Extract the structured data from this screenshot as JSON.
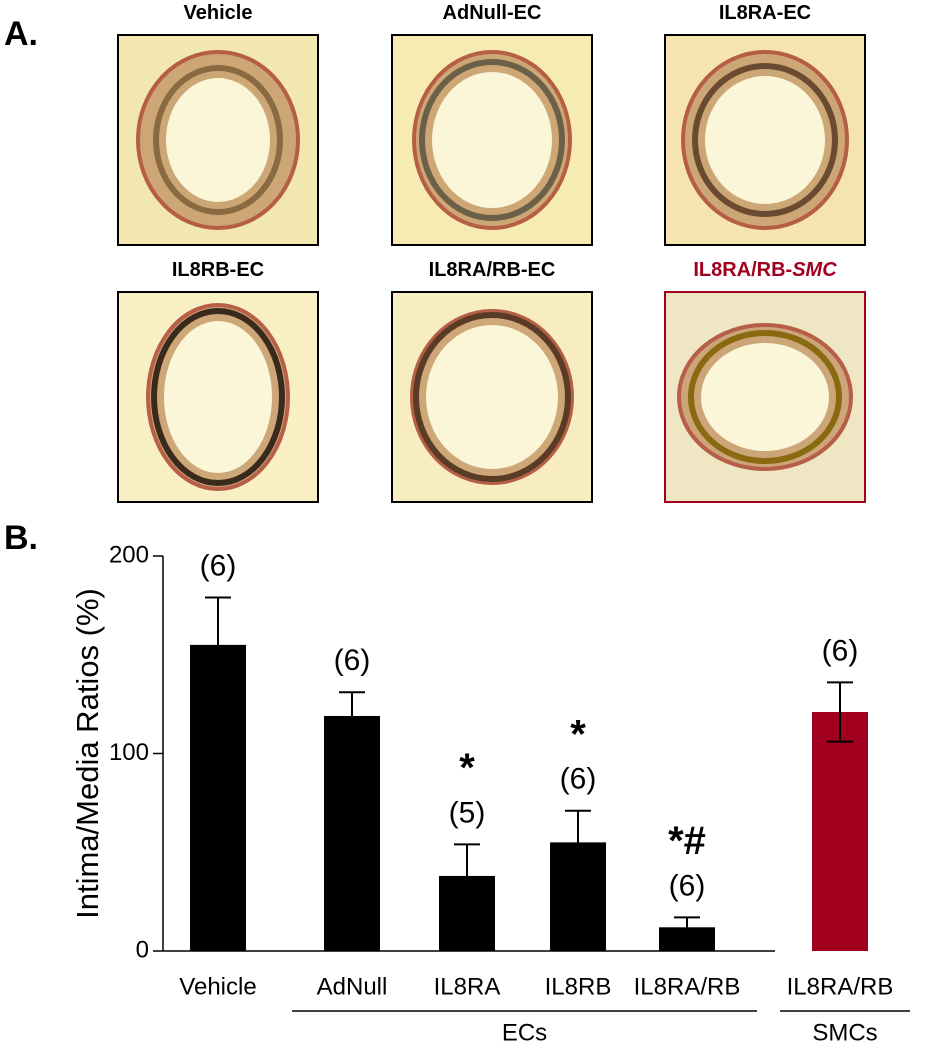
{
  "panel_a": {
    "letter": "A.",
    "panels": [
      {
        "label": "Vehicle"
      },
      {
        "label": "AdNull-EC"
      },
      {
        "label": "IL8RA-EC"
      },
      {
        "label": "IL8RB-EC"
      },
      {
        "label": "IL8RA/RB-EC"
      },
      {
        "label": "IL8RA/RB-",
        "label_italic": "SMC",
        "color": "#a0001e"
      }
    ]
  },
  "panel_b": {
    "letter": "B."
  },
  "chart_data": {
    "type": "bar",
    "y_label": "Intima/Media Ratios (%)",
    "categories": [
      "Vehicle",
      "AdNull",
      "IL8RA",
      "IL8RB",
      "IL8RA/RB",
      "IL8RA/RB"
    ],
    "values": [
      155,
      119,
      38,
      55,
      12,
      121
    ],
    "errors": [
      24,
      12,
      16,
      16,
      5,
      15
    ],
    "colors": [
      "#000000",
      "#000000",
      "#000000",
      "#000000",
      "#000000",
      "#a0001e"
    ],
    "n_labels": [
      "(6)",
      "(6)",
      "(5)",
      "(6)",
      "(6)",
      "(6)"
    ],
    "annotations": [
      null,
      null,
      "*",
      "*",
      "*#",
      null
    ],
    "groups": [
      {
        "label": "ECs",
        "categories": [
          1,
          4
        ]
      },
      {
        "label": "SMCs",
        "categories": [
          5,
          5
        ]
      }
    ],
    "ylim": [
      0,
      200
    ],
    "yticks": [
      0,
      100,
      200
    ]
  }
}
